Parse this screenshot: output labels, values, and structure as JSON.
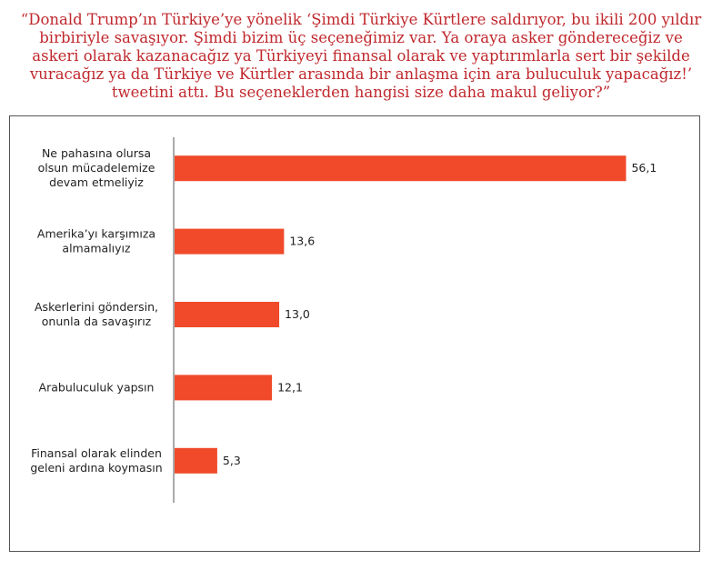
{
  "title": "“Donald Trump’ın Türkiye’ye yönelik ‘Şimdi Türkiye Kürtlere saldırıyor, bu ikili 200 yıldır birbiriyle savaşıyor. Şimdi bizim üç seçeneğimiz var. Ya oraya asker göndereceğiz ve askeri olarak kazanacağız ya Türkiyeyi finansal olarak ve yaptırımlarla sert bir şekilde vuracağız ya da Türkiye ve Kürtler arasında bir anlaşma için ara buluculuk yapacağız!’ tweetini attı. Bu seçeneklerden hangisi size daha makul geliyor?”",
  "colors": {
    "bar": "#f04a2a",
    "title": "#c0282d",
    "axis": "#555555"
  },
  "chart_data": {
    "type": "bar",
    "orientation": "horizontal",
    "categories": [
      "Ne pahasına olursa olsun mücadelemize devam etmeliyiz",
      "Amerika’yı karşımıza almamalıyız",
      "Askerlerini göndersin, onunla da savaşırız",
      "Arabuluculuk yapsın",
      "Finansal olarak elinden geleni ardına koymasın"
    ],
    "category_lines": [
      [
        "Ne pahasına olursa",
        "olsun mücadelemize",
        "devam etmeliyiz"
      ],
      [
        "Amerika’yı karşımıza",
        "almamalıyız"
      ],
      [
        "Askerlerini göndersin,",
        "onunla da savaşırız"
      ],
      [
        "Arabuluculuk yapsın"
      ],
      [
        "Finansal olarak elinden",
        "geleni ardına koymasın"
      ]
    ],
    "values": [
      56.1,
      13.6,
      13.0,
      12.1,
      5.3
    ],
    "value_labels": [
      "56,1",
      "13,6",
      "13,0",
      "12,1",
      "5,3"
    ],
    "xlim": [
      0,
      60
    ],
    "grid": false,
    "legend": "none"
  }
}
